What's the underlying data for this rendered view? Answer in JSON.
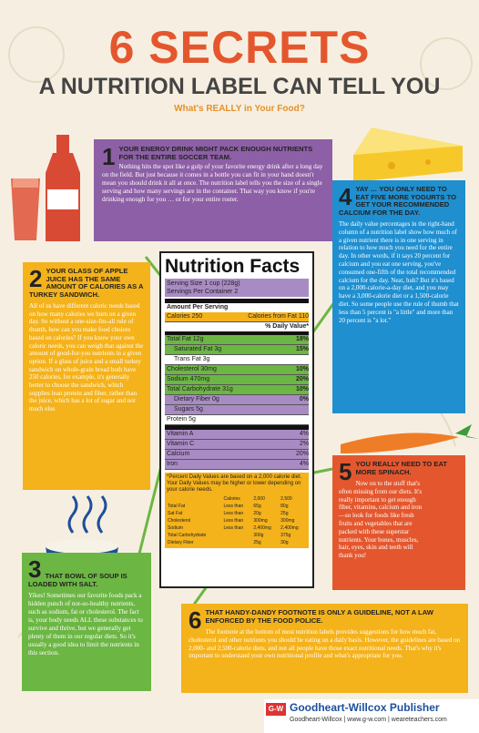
{
  "title": {
    "line1": "6 SECRETS",
    "line2": "A NUTRITION LABEL CAN TELL YOU",
    "subtitle": "What's REALLY in Your Food?"
  },
  "secrets": [
    {
      "num": "1",
      "heading": "YOUR ENERGY DRINK MIGHT PACK ENOUGH NUTRIENTS FOR THE ENTIRE SOCCER TEAM.",
      "text": "Nothing hits the spot like a gulp of your favorite energy drink after a long day on the field. But just because it comes in a bottle you can fit in your hand doesn't mean you should drink it all at once. The nutrition label tells you the size of a single serving and how many servings are in the container. That way you know if you're drinking enough for you … or for your entire roster."
    },
    {
      "num": "2",
      "heading": "YOUR GLASS OF APPLE JUICE HAS THE SAME AMOUNT OF CALORIES AS A TURKEY SANDWICH.",
      "text": "All of us have different caloric needs based on how many calories we burn on a given day. So without a one-size-fits-all rule of thumb, how can you make food choices based on calories? If you know your own caloric needs, you can weigh that against the amount of good-for-you nutrients in a given option. If a glass of juice and a small turkey sandwich on whole-grain bread both have 250 calories, for example, it's generally better to choose the sandwich, which supplies lean protein and fiber, rather than the juice, which has a lot of sugar and not much else."
    },
    {
      "num": "3",
      "heading": "THAT BOWL OF SOUP IS LOADED WITH SALT.",
      "text": "Yikes! Sometimes our favorite foods pack a hidden punch of not-so-healthy nutrients, such as sodium, fat or cholesterol. The fact is, your body needs ALL these substances to survive and thrive, but we generally get plenty of them in our regular diets. So it's usually a good idea to limit the nutrients in this section."
    },
    {
      "num": "4",
      "heading": "YAY … YOU ONLY NEED TO EAT FIVE MORE YOGURTS TO GET YOUR RECOMMENDED CALCIUM FOR THE DAY.",
      "text": "The daily value percentages in the right-hand column of a nutrition label show how much of a given nutrient there is in one serving in relation to how much you need for the entire day. In other words, if it says 20 percent for calcium and you eat one serving, you've consumed one-fifth of the total recommended calcium for the day. Neat, huh? But it's based on a 2,000-calorie-a-day diet, and you may have a 3,000-calorie diet or a 1,500-calorie diet. So some people use the rule of thumb that less than 5 percent is \"a little\" and more than 20 percent is \"a lot.\""
    },
    {
      "num": "5",
      "heading": "YOU REALLY NEED TO EAT MORE SPINACH.",
      "text": "Now on to the stuff that's often missing from our diets. It's really important to get enough fiber, vitamins, calcium and iron —so look for foods like fresh fruits and vegetables that are packed with these superstar nutrients. Your bones, muscles, hair, eyes, skin and teeth will thank you!"
    },
    {
      "num": "6",
      "heading": "THAT HANDY-DANDY FOOTNOTE IS ONLY A GUIDELINE, NOT A LAW ENFORCED BY THE FOOD POLICE.",
      "text": "The footnote at the bottom of most nutrition labels provides suggestions for how much fat, cholesterol and other nutrients you should be eating on a daily basis. However, the guidelines are based on 2,000- and 2,500-calorie diets, and not all people have those exact nutritional needs. That's why it's important to understand your own nutritional profile and what's appropriate for you."
    }
  ],
  "nutrition": {
    "title": "Nutrition Facts",
    "serving_size": "Serving Size 1 cup (228g)",
    "servings": "Servings Per Container 2",
    "amount_per": "Amount Per Serving",
    "calories": "Calories 250",
    "cal_fat": "Calories from Fat 110",
    "daily_value": "% Daily Value*",
    "rows": [
      {
        "label": "Total Fat 12g",
        "pct": "18%"
      },
      {
        "label": "Saturated Fat 3g",
        "pct": "15%"
      },
      {
        "label": "Trans Fat 3g",
        "pct": ""
      },
      {
        "label": "Cholesterol 30mg",
        "pct": "10%"
      },
      {
        "label": "Sodium 470mg",
        "pct": "20%"
      },
      {
        "label": "Total Carbohydrate 31g",
        "pct": "10%"
      },
      {
        "label": "Dietary Fiber 0g",
        "pct": "0%"
      },
      {
        "label": "Sugars 5g",
        "pct": ""
      },
      {
        "label": "Protein 5g",
        "pct": ""
      }
    ],
    "vitamins": [
      {
        "label": "Vitamin A",
        "pct": "4%"
      },
      {
        "label": "Vitamin C",
        "pct": "2%"
      },
      {
        "label": "Calcium",
        "pct": "20%"
      },
      {
        "label": "Iron",
        "pct": "4%"
      }
    ],
    "footnote": "*Percent Daily Values are based on a 2,000 calorie diet. Your Daily Values may be higher or lower depending on your calorie needs.",
    "table_header": [
      "",
      "Calories",
      "2,000",
      "2,500"
    ],
    "table": [
      [
        "Total Fat",
        "Less than",
        "65g",
        "80g"
      ],
      [
        "Sat Fat",
        "Less than",
        "20g",
        "25g"
      ],
      [
        "Cholesterol",
        "Less than",
        "300mg",
        "300mg"
      ],
      [
        "Sodium",
        "Less than",
        "2,400mg",
        "2,400mg"
      ],
      [
        "Total Carbohydrate",
        "",
        "300g",
        "375g"
      ],
      [
        "Dietary Fiber",
        "",
        "25g",
        "30g"
      ]
    ]
  },
  "footer": {
    "logo": "G-W",
    "publisher": "Goodheart-Willcox Publisher",
    "links": "Goodheart-Willcox | www.g-w.com | weareteachers.com"
  },
  "colors": {
    "orange": "#e4572e",
    "purple": "#8d5fa6",
    "yellow": "#f4b21b",
    "green": "#6cb644",
    "blue": "#1f8fd0",
    "teal": "#2aa8a4"
  }
}
